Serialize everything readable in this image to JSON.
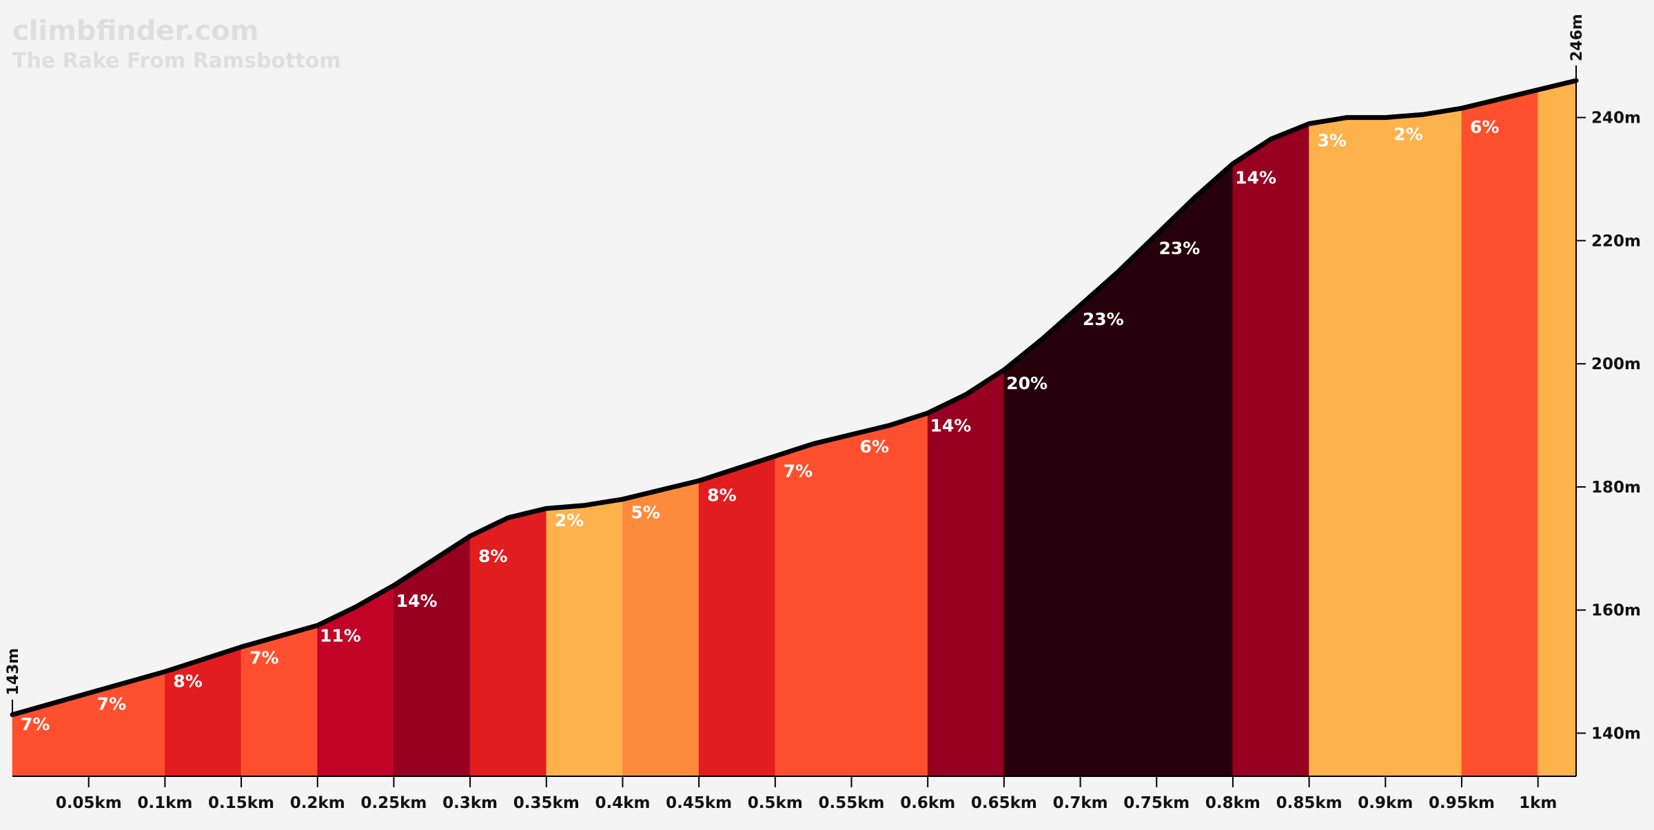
{
  "branding": {
    "site": "climbfinder.com",
    "climb_name": "The Rake From Ramsbottom"
  },
  "chart_data": {
    "type": "area",
    "title": "The Rake From Ramsbottom",
    "x_unit": "km",
    "y_unit": "m",
    "xlim": [
      0,
      1.025
    ],
    "ylim": [
      133,
      246
    ],
    "profile": [
      [
        0.0,
        143.0
      ],
      [
        0.05,
        146.5
      ],
      [
        0.1,
        150.0
      ],
      [
        0.15,
        154.0
      ],
      [
        0.2,
        157.5
      ],
      [
        0.225,
        160.5
      ],
      [
        0.25,
        164.0
      ],
      [
        0.275,
        168.0
      ],
      [
        0.3,
        172.0
      ],
      [
        0.325,
        175.0
      ],
      [
        0.35,
        176.5
      ],
      [
        0.375,
        177.0
      ],
      [
        0.4,
        178.0
      ],
      [
        0.425,
        179.5
      ],
      [
        0.45,
        181.0
      ],
      [
        0.475,
        183.0
      ],
      [
        0.5,
        185.0
      ],
      [
        0.525,
        187.0
      ],
      [
        0.55,
        188.5
      ],
      [
        0.575,
        190.0
      ],
      [
        0.6,
        192.0
      ],
      [
        0.625,
        195.0
      ],
      [
        0.65,
        199.0
      ],
      [
        0.675,
        204.0
      ],
      [
        0.7,
        209.5
      ],
      [
        0.725,
        215.0
      ],
      [
        0.75,
        221.0
      ],
      [
        0.775,
        227.0
      ],
      [
        0.8,
        232.5
      ],
      [
        0.825,
        236.5
      ],
      [
        0.85,
        239.0
      ],
      [
        0.875,
        240.0
      ],
      [
        0.9,
        240.0
      ],
      [
        0.925,
        240.5
      ],
      [
        0.95,
        241.5
      ],
      [
        0.975,
        243.0
      ],
      [
        1.0,
        244.5
      ],
      [
        1.025,
        246.0
      ]
    ],
    "segments": [
      {
        "from": 0.0,
        "to": 0.1,
        "grade": "7%",
        "color": "#fe502e"
      },
      {
        "from": 0.1,
        "to": 0.15,
        "grade": "8%",
        "color": "#e11d20"
      },
      {
        "from": 0.15,
        "to": 0.2,
        "grade": "7%",
        "color": "#fe502e"
      },
      {
        "from": 0.2,
        "to": 0.25,
        "grade": "11%",
        "color": "#c10328"
      },
      {
        "from": 0.25,
        "to": 0.3,
        "grade": "14%",
        "color": "#980021"
      },
      {
        "from": 0.3,
        "to": 0.35,
        "grade": "8%",
        "color": "#e11d20"
      },
      {
        "from": 0.35,
        "to": 0.4,
        "grade": "2%",
        "color": "#feb24c"
      },
      {
        "from": 0.4,
        "to": 0.45,
        "grade": "5%",
        "color": "#fe8a3c"
      },
      {
        "from": 0.45,
        "to": 0.5,
        "grade": "8%",
        "color": "#e11d20"
      },
      {
        "from": 0.5,
        "to": 0.6,
        "grade": "7%",
        "color": "#fe502e"
      },
      {
        "from": 0.6,
        "to": 0.65,
        "grade": "14%",
        "color": "#980021"
      },
      {
        "from": 0.65,
        "to": 0.8,
        "grade": "20%",
        "color": "#26000c"
      },
      {
        "from": 0.8,
        "to": 0.85,
        "grade": "14%",
        "color": "#980021"
      },
      {
        "from": 0.85,
        "to": 0.95,
        "grade": "3%",
        "color": "#feb24c"
      },
      {
        "from": 0.95,
        "to": 1.0,
        "grade": "6%",
        "color": "#fe502e"
      },
      {
        "from": 1.0,
        "to": 1.025,
        "grade": "",
        "color": "#feb24c"
      }
    ],
    "segment_labels": [
      {
        "x": 0.015,
        "y": 140.5,
        "text": "7%"
      },
      {
        "x": 0.065,
        "y": 143.8,
        "text": "7%"
      },
      {
        "x": 0.115,
        "y": 147.5,
        "text": "8%"
      },
      {
        "x": 0.165,
        "y": 151.3,
        "text": "7%"
      },
      {
        "x": 0.215,
        "y": 154.9,
        "text": "11%"
      },
      {
        "x": 0.265,
        "y": 160.5,
        "text": "14%"
      },
      {
        "x": 0.315,
        "y": 167.8,
        "text": "8%"
      },
      {
        "x": 0.365,
        "y": 173.6,
        "text": "2%"
      },
      {
        "x": 0.415,
        "y": 174.9,
        "text": "5%"
      },
      {
        "x": 0.465,
        "y": 177.7,
        "text": "8%"
      },
      {
        "x": 0.515,
        "y": 181.6,
        "text": "7%"
      },
      {
        "x": 0.565,
        "y": 185.6,
        "text": "6%"
      },
      {
        "x": 0.615,
        "y": 189.0,
        "text": "14%"
      },
      {
        "x": 0.665,
        "y": 195.9,
        "text": "20%"
      },
      {
        "x": 0.715,
        "y": 206.3,
        "text": "23%"
      },
      {
        "x": 0.765,
        "y": 217.8,
        "text": "23%"
      },
      {
        "x": 0.815,
        "y": 229.3,
        "text": "14%"
      },
      {
        "x": 0.865,
        "y": 235.3,
        "text": "3%"
      },
      {
        "x": 0.915,
        "y": 236.3,
        "text": "2%"
      },
      {
        "x": 0.965,
        "y": 237.5,
        "text": "6%"
      }
    ],
    "x_ticks": [
      0.05,
      0.1,
      0.15,
      0.2,
      0.25,
      0.3,
      0.35,
      0.4,
      0.45,
      0.5,
      0.55,
      0.6,
      0.65,
      0.7,
      0.75,
      0.8,
      0.85,
      0.9,
      0.95,
      1.0
    ],
    "x_tick_labels": [
      "0.05km",
      "0.1km",
      "0.15km",
      "0.2km",
      "0.25km",
      "0.3km",
      "0.35km",
      "0.4km",
      "0.45km",
      "0.5km",
      "0.55km",
      "0.6km",
      "0.65km",
      "0.7km",
      "0.75km",
      "0.8km",
      "0.85km",
      "0.9km",
      "0.95km",
      "1km"
    ],
    "y_ticks": [
      140,
      160,
      180,
      200,
      220,
      240
    ],
    "y_tick_labels": [
      "140m",
      "160m",
      "180m",
      "200m",
      "220m",
      "240m"
    ],
    "start": {
      "x": 0.0,
      "y": 143,
      "label": "143m"
    },
    "end": {
      "x": 1.025,
      "y": 246,
      "label": "246m"
    },
    "grid": false,
    "legend": "none"
  }
}
